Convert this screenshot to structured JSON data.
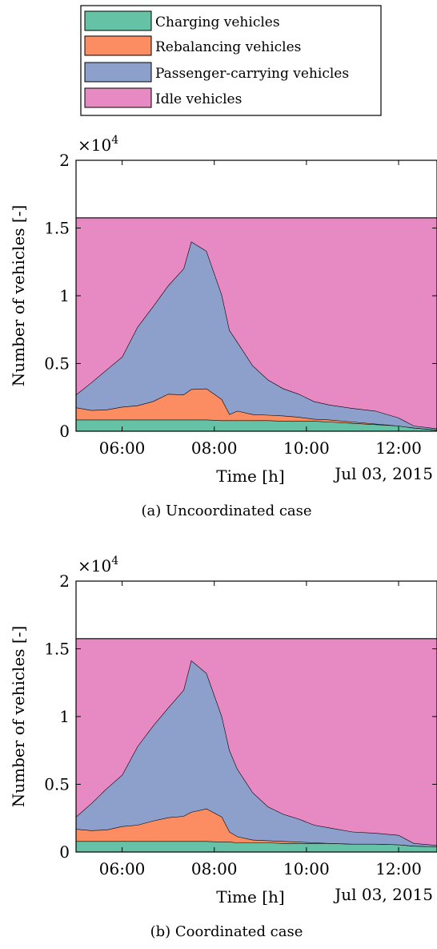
{
  "colors": {
    "charging": "#66c2a5",
    "rebalancing": "#fc8d62",
    "passenger": "#8da0cb",
    "idle": "#e78ac3"
  },
  "legend": {
    "items": [
      {
        "label": "Charging vehicles",
        "color": "#66c2a5"
      },
      {
        "label": "Rebalancing vehicles",
        "color": "#fc8d62"
      },
      {
        "label": "Passenger-carrying vehicles",
        "color": "#8da0cb"
      },
      {
        "label": "Idle vehicles",
        "color": "#e78ac3"
      }
    ]
  },
  "chart_data": [
    {
      "type": "area",
      "stacked": true,
      "caption": "(a) Uncoordinated case",
      "xlabel": "Time [h]",
      "ylabel": "Number of vehicles [-]",
      "date_label": "Jul 03, 2015",
      "y_multiplier": "×10",
      "y_exponent": "4",
      "xlim": [
        "05:00",
        "12:50"
      ],
      "ylim": [
        0,
        20000
      ],
      "x_ticks": [
        "06:00",
        "08:00",
        "10:00",
        "12:00"
      ],
      "y_ticks": [
        {
          "value": 0,
          "label": "0"
        },
        {
          "value": 5000,
          "label": "0.5"
        },
        {
          "value": 10000,
          "label": "1"
        },
        {
          "value": 15000,
          "label": "1.5"
        },
        {
          "value": 20000,
          "label": "2"
        }
      ],
      "x": [
        "05:00",
        "05:20",
        "05:40",
        "06:00",
        "06:20",
        "06:40",
        "07:00",
        "07:20",
        "07:30",
        "07:50",
        "08:10",
        "08:20",
        "08:30",
        "08:50",
        "09:10",
        "09:30",
        "09:50",
        "10:10",
        "10:30",
        "11:00",
        "11:30",
        "12:00",
        "12:20",
        "12:50"
      ],
      "series": [
        {
          "name": "Charging vehicles",
          "values": [
            850,
            850,
            850,
            850,
            850,
            850,
            850,
            850,
            850,
            850,
            800,
            800,
            800,
            800,
            800,
            750,
            750,
            750,
            700,
            600,
            500,
            400,
            250,
            100
          ]
        },
        {
          "name": "Rebalancing vehicles",
          "values": [
            900,
            700,
            750,
            950,
            1050,
            1350,
            1900,
            1850,
            2250,
            2300,
            1550,
            450,
            700,
            450,
            400,
            400,
            300,
            150,
            150,
            100,
            50,
            0,
            0,
            0
          ]
        },
        {
          "name": "Passenger-carrying vehicles",
          "values": [
            950,
            2050,
            2950,
            3700,
            5800,
            7000,
            8000,
            9300,
            10900,
            10150,
            7700,
            6200,
            5100,
            3600,
            2600,
            2000,
            1700,
            1300,
            1100,
            1000,
            950,
            600,
            150,
            100
          ]
        },
        {
          "name": "Idle vehicles",
          "values": [
            13050,
            12150,
            11200,
            10250,
            8050,
            6550,
            5000,
            3750,
            1750,
            2450,
            5700,
            8300,
            9150,
            10900,
            11950,
            12600,
            13000,
            13550,
            13800,
            14050,
            14250,
            14750,
            15350,
            15550
          ]
        }
      ]
    },
    {
      "type": "area",
      "stacked": true,
      "caption": "(b) Coordinated case",
      "xlabel": "Time [h]",
      "ylabel": "Number of vehicles [-]",
      "date_label": "Jul 03, 2015",
      "y_multiplier": "×10",
      "y_exponent": "4",
      "xlim": [
        "05:00",
        "12:50"
      ],
      "ylim": [
        0,
        20000
      ],
      "x_ticks": [
        "06:00",
        "08:00",
        "10:00",
        "12:00"
      ],
      "y_ticks": [
        {
          "value": 0,
          "label": "0"
        },
        {
          "value": 5000,
          "label": "0.5"
        },
        {
          "value": 10000,
          "label": "1"
        },
        {
          "value": 15000,
          "label": "1.5"
        },
        {
          "value": 20000,
          "label": "2"
        }
      ],
      "x": [
        "05:00",
        "05:20",
        "05:40",
        "06:00",
        "06:20",
        "06:40",
        "07:00",
        "07:20",
        "07:30",
        "07:50",
        "08:10",
        "08:20",
        "08:30",
        "08:50",
        "09:10",
        "09:30",
        "09:50",
        "10:10",
        "10:30",
        "11:00",
        "11:30",
        "12:00",
        "12:20",
        "12:50"
      ],
      "series": [
        {
          "name": "Charging vehicles",
          "values": [
            800,
            800,
            800,
            800,
            800,
            800,
            800,
            800,
            800,
            800,
            750,
            750,
            700,
            700,
            700,
            650,
            650,
            650,
            650,
            600,
            600,
            550,
            450,
            400
          ]
        },
        {
          "name": "Rebalancing vehicles",
          "values": [
            900,
            800,
            850,
            1100,
            1200,
            1500,
            1750,
            1850,
            2150,
            2400,
            1850,
            750,
            450,
            200,
            150,
            150,
            100,
            50,
            0,
            0,
            0,
            0,
            0,
            0
          ]
        },
        {
          "name": "Passenger-carrying vehicles",
          "values": [
            900,
            2000,
            3050,
            3800,
            5800,
            7000,
            8100,
            9300,
            11200,
            10000,
            7400,
            6000,
            5000,
            3500,
            2500,
            2000,
            1700,
            1300,
            1150,
            900,
            800,
            700,
            200,
            100
          ]
        },
        {
          "name": "Idle vehicles",
          "values": [
            13150,
            12150,
            11050,
            10050,
            7950,
            6450,
            5100,
            3800,
            1600,
            2550,
            5750,
            8250,
            9600,
            11350,
            12400,
            12950,
            13300,
            13750,
            13950,
            14250,
            14350,
            14500,
            15100,
            15250
          ]
        }
      ]
    }
  ]
}
